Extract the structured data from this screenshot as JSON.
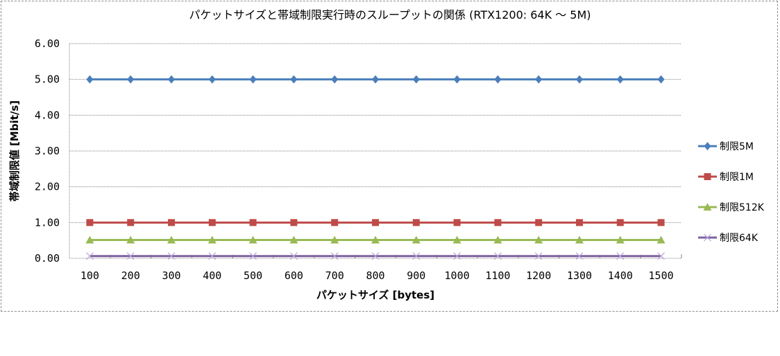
{
  "chart_data": {
    "type": "line",
    "title": "パケットサイズと帯域制限実行時のスループットの関係 (RTX1200: 64K 〜 5M)",
    "xlabel": "パケットサイズ [bytes]",
    "ylabel": "帯域制限値 [Mbit/s]",
    "categories": [
      "100",
      "200",
      "300",
      "400",
      "500",
      "600",
      "700",
      "800",
      "900",
      "1000",
      "1100",
      "1200",
      "1300",
      "1400",
      "1500"
    ],
    "y_ticks": [
      "0.00",
      "1.00",
      "2.00",
      "3.00",
      "4.00",
      "5.00",
      "6.00"
    ],
    "ylim": [
      0,
      6
    ],
    "grid": "horizontal",
    "legend_position": "right",
    "series": [
      {
        "name": "制限5M",
        "color": "#4a7ebb",
        "marker": "diamond",
        "values": [
          5,
          5,
          5,
          5,
          5,
          5,
          5,
          5,
          5,
          5,
          5,
          5,
          5,
          5,
          5
        ]
      },
      {
        "name": "制限1M",
        "color": "#be4b48",
        "marker": "square",
        "values": [
          1,
          1,
          1,
          1,
          1,
          1,
          1,
          1,
          1,
          1,
          1,
          1,
          1,
          1,
          1
        ]
      },
      {
        "name": "制限512K",
        "color": "#98b954",
        "marker": "triangle",
        "values": [
          0.512,
          0.512,
          0.512,
          0.512,
          0.512,
          0.512,
          0.512,
          0.512,
          0.512,
          0.512,
          0.512,
          0.512,
          0.512,
          0.512,
          0.512
        ]
      },
      {
        "name": "制限64K",
        "color": "#7d60a0",
        "marker": "x",
        "values": [
          0.064,
          0.064,
          0.064,
          0.064,
          0.064,
          0.064,
          0.064,
          0.064,
          0.064,
          0.064,
          0.064,
          0.064,
          0.064,
          0.064,
          0.064
        ]
      }
    ]
  }
}
